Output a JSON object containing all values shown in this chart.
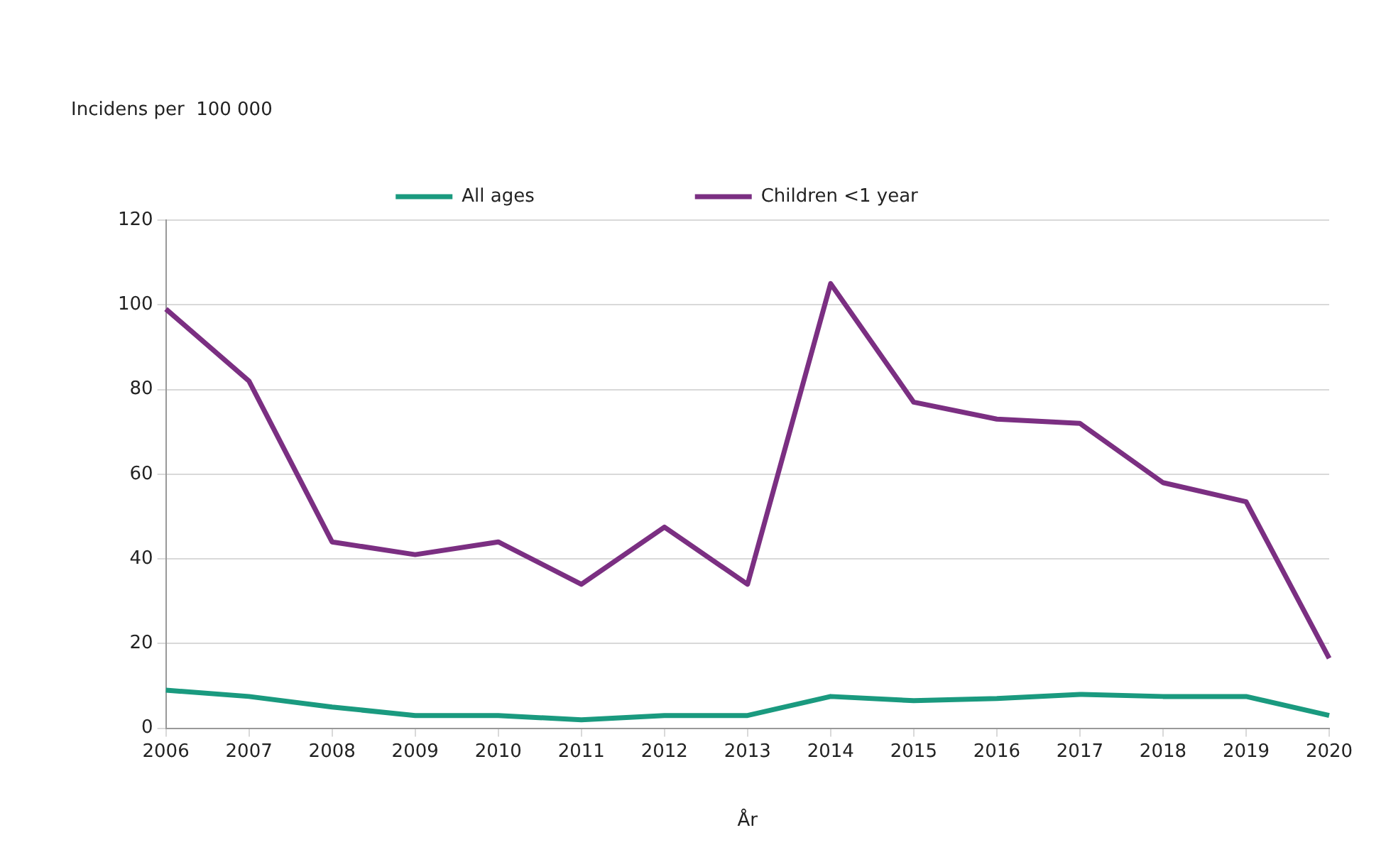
{
  "chart_data": {
    "type": "line",
    "xlabel": "År",
    "annotations": [
      "Incidens per  100 000"
    ],
    "categories": [
      "2006",
      "2007",
      "2008",
      "2009",
      "2010",
      "2011",
      "2012",
      "2013",
      "2014",
      "2015",
      "2016",
      "2017",
      "2018",
      "2019",
      "2020"
    ],
    "series": [
      {
        "name": "All ages",
        "color": "#1a9a7f",
        "values": [
          9,
          7.5,
          5,
          3,
          3,
          2,
          3,
          3,
          7.5,
          6.5,
          7,
          8,
          7.5,
          7.5,
          3
        ]
      },
      {
        "name": "Children <1 year",
        "color": "#7b2f82",
        "values": [
          99,
          82,
          44,
          41,
          44,
          34,
          47.5,
          34,
          105,
          77,
          73,
          72,
          58,
          53.5,
          16.5
        ]
      }
    ],
    "ylim": [
      0,
      120
    ],
    "yticks": [
      0,
      20,
      40,
      60,
      80,
      100,
      120
    ],
    "grid": "y",
    "legend": "top",
    "marker": "none",
    "line_style": "solid"
  }
}
